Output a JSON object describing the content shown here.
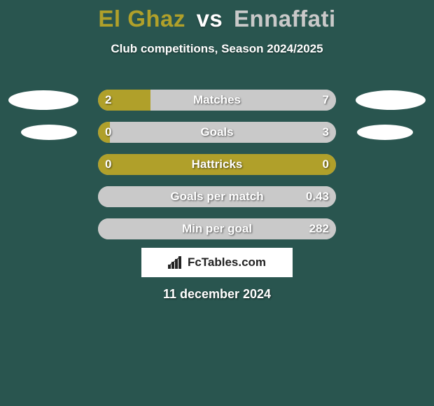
{
  "background_color": "#29554f",
  "title": {
    "player1": "El Ghaz",
    "vs": "vs",
    "player2": "Ennaffati",
    "player1_color": "#b0a02a",
    "player2_color": "#c9c9c9",
    "fontsize": 33
  },
  "subtitle": "Club competitions, Season 2024/2025",
  "colors": {
    "left_bar": "#b0a02a",
    "right_bar": "#c9c9c9",
    "track_border": "none",
    "text": "#ffffff"
  },
  "bar": {
    "track_width": 340,
    "track_height": 30,
    "radius": 15
  },
  "rows": [
    {
      "label": "Matches",
      "left": "2",
      "right": "7",
      "left_pct": 22.2,
      "right_pct": 77.8,
      "ellipses": {
        "show": true,
        "size": "big"
      }
    },
    {
      "label": "Goals",
      "left": "0",
      "right": "3",
      "left_pct": 5,
      "right_pct": 95,
      "ellipses": {
        "show": true,
        "size": "small"
      }
    },
    {
      "label": "Hattricks",
      "left": "0",
      "right": "0",
      "left_pct": 100,
      "right_pct": 0,
      "ellipses": {
        "show": false
      }
    },
    {
      "label": "Goals per match",
      "left": "",
      "right": "0.43",
      "left_pct": 0,
      "right_pct": 100,
      "ellipses": {
        "show": false
      }
    },
    {
      "label": "Min per goal",
      "left": "",
      "right": "282",
      "left_pct": 0,
      "right_pct": 100,
      "ellipses": {
        "show": false
      }
    }
  ],
  "logo_text": "FcTables.com",
  "date": "11 december 2024"
}
